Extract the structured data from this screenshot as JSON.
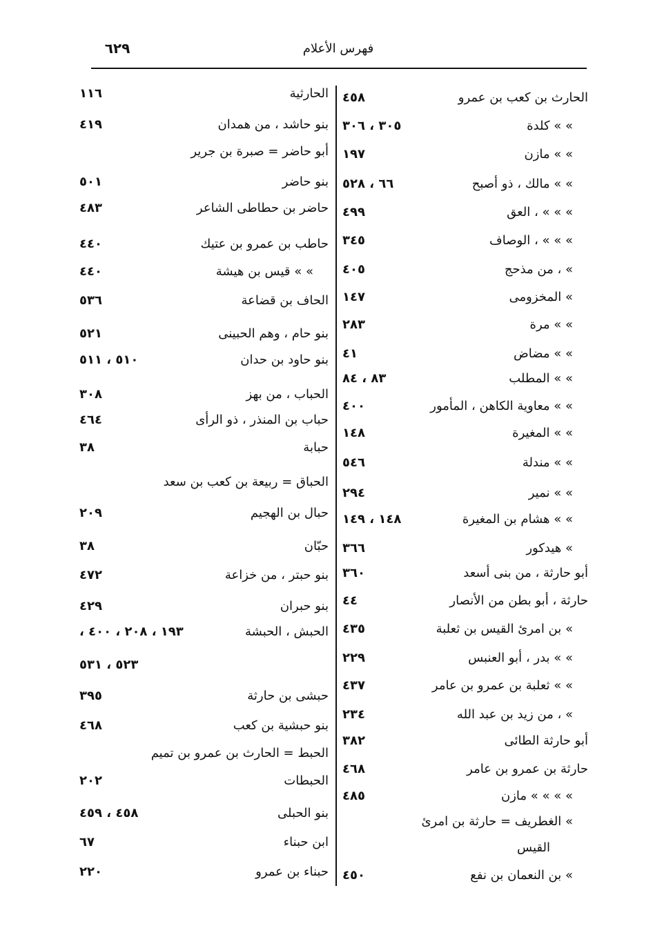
{
  "header": {
    "title": "فهرس الأعلام",
    "page_number": "٦٢٩"
  },
  "right_column": [
    {
      "text": "الحارث بن كعب بن عمرو",
      "pages": "٤٥٨"
    },
    {
      "text": "»   »  كلدة",
      "pages": "٣٠٥ ، ٣٠٦"
    },
    {
      "text": "»   »  مازن",
      "pages": "١٩٧"
    },
    {
      "text": "»   »  مالك ، ذو أصبح",
      "pages": "٦٦ ، ٥٢٨"
    },
    {
      "text": "»   »   » ، العق",
      "pages": "٤٩٩"
    },
    {
      "text": "»   »   » ، الوصاف",
      "pages": "٣٤٥"
    },
    {
      "text": "»  ، من مذحج",
      "pages": "٤٠٥"
    },
    {
      "text": "»  المخزومى",
      "pages": "١٤٧"
    },
    {
      "text": "»   »  مرة",
      "pages": "٢٨٣"
    },
    {
      "text": "»   »  مضاض",
      "pages": "٤١"
    },
    {
      "text": "»   »  المطلب",
      "pages": "٨٣ ، ٨٤"
    },
    {
      "text": "»   »  معاوية الكاهن ، المأمور",
      "pages": "٤٠٠"
    },
    {
      "text": "»   »  المغيرة",
      "pages": "١٤٨"
    },
    {
      "text": "»   »  مندلة",
      "pages": "٥٤٦"
    },
    {
      "text": "»   »  نمير",
      "pages": "٢٩٤"
    },
    {
      "text": "»   »  هشام بن المغيرة",
      "pages": "١٤٨ ، ١٤٩"
    },
    {
      "text": "»  هيدكور",
      "pages": "٣٦٦"
    },
    {
      "text": "أبو حارثة ، من بنى أسعد",
      "pages": "٣٦٠"
    },
    {
      "text": "حارثة ، أبو بطن من الأنصار",
      "pages": "٤٤"
    },
    {
      "text": "»  بن امرئ القيس بن ثعلبة",
      "pages": "٤٣٥"
    },
    {
      "text": "»   »  بدر ، أبو العنبس",
      "pages": "٢٢٩"
    },
    {
      "text": "»   »  ثعلبة بن عمرو بن عامر",
      "pages": "٤٣٧"
    },
    {
      "text": "»  ، من زيد بن عبد الله",
      "pages": "٢٣٤"
    },
    {
      "text": "أبو حارثة الطائى",
      "pages": "٣٨٢"
    },
    {
      "text": "حارثة بن عمرو بن عامر",
      "pages": "٤٦٨"
    },
    {
      "text": "»   »   »   »  مازن",
      "pages": "٤٨٥"
    },
    {
      "text": "»  الغطريف = حارثة بن امرئ",
      "pages": ""
    },
    {
      "text": "القيس",
      "pages": ""
    },
    {
      "text": "»  بن النعمان بن نفع",
      "pages": "٤٥٠"
    }
  ],
  "left_column": [
    {
      "text": "الحارثية",
      "pages": "١١٦"
    },
    {
      "text": "بنو حاشد ، من همدان",
      "pages": "٤١٩"
    },
    {
      "text": "أبو حاضر = صبرة بن جرير",
      "pages": ""
    },
    {
      "text": "بنو حاضر",
      "pages": "٥٠١"
    },
    {
      "text": "حاضر بن حطاطى الشاعر",
      "pages": "٤٨٣"
    },
    {
      "text": "حاطب بن عمرو بن عتيك",
      "pages": "٤٤٠"
    },
    {
      "text": "»   »  قيس بن هيشة",
      "pages": "٤٤٠"
    },
    {
      "text": "الحاف بن قضاعة",
      "pages": "٥٣٦"
    },
    {
      "text": "بنو حام ، وهم الحبينى",
      "pages": "٥٢١"
    },
    {
      "text": "بنو حاود بن حدان",
      "pages": "٥١٠ ، ٥١١"
    },
    {
      "text": "الحباب ، من بهز",
      "pages": "٣٠٨"
    },
    {
      "text": "حباب بن المنذر ، ذو الرأى",
      "pages": "٤٦٤"
    },
    {
      "text": "حبابة",
      "pages": "٣٨"
    },
    {
      "text": "الحباق = ربيعة بن كعب بن سعد",
      "pages": ""
    },
    {
      "text": "حبال بن الهجيم",
      "pages": "٢٠٩"
    },
    {
      "text": "حبّان",
      "pages": "٣٨"
    },
    {
      "text": "بنو حبتر ، من خزاعة",
      "pages": "٤٧٢"
    },
    {
      "text": "بنو حبران",
      "pages": "٤٢٩"
    },
    {
      "text": "الحبش ، الحبشة",
      "pages": "١٩٣ ، ٢٠٨ ، ٤٠٠ ،"
    },
    {
      "text": "",
      "pages": "٥٢٣ ، ٥٣١"
    },
    {
      "text": "حبشى بن حارثة",
      "pages": "٣٩٥"
    },
    {
      "text": "بنو حبشية بن كعب",
      "pages": "٤٦٨"
    },
    {
      "text": "الحبط = الحارث بن عمرو بن تميم",
      "pages": ""
    },
    {
      "text": "الحبطات",
      "pages": "٢٠٢"
    },
    {
      "text": "بنو الحبلى",
      "pages": "٤٥٨ ، ٤٥٩"
    },
    {
      "text": "ابن حبناء",
      "pages": "٦٧"
    },
    {
      "text": "حبناء بن عمرو",
      "pages": "٢٢٠"
    }
  ]
}
